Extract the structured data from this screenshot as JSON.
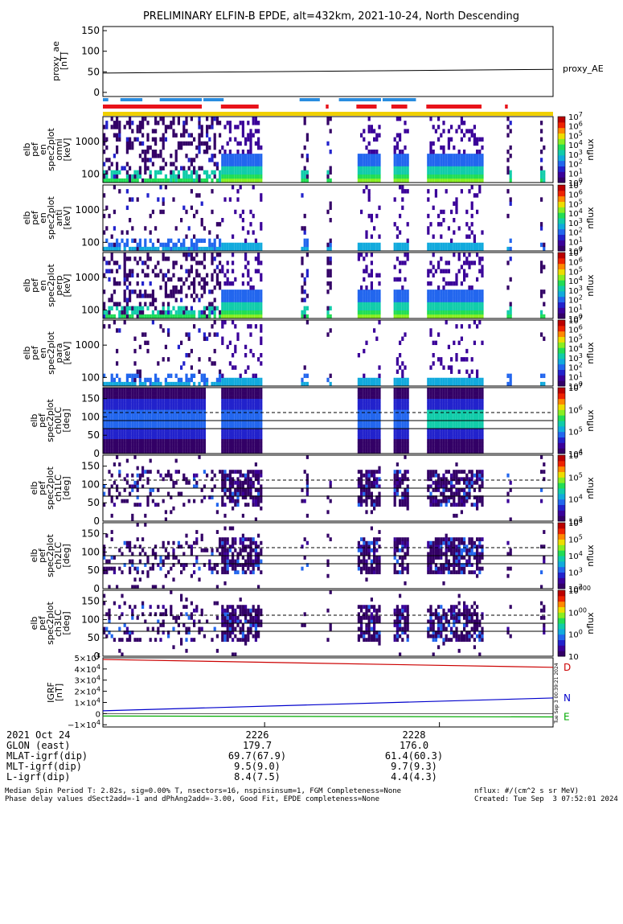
{
  "chart_data": {
    "type": "multi-panel-spectrogram",
    "title": "PRELIMINARY ELFIN-B EPDE, alt=432km, 2021-10-24, North Descending",
    "time_ticks": [
      "2226",
      "2228"
    ],
    "tick_minutes": [
      2226,
      2228
    ],
    "time_range_minutes": [
      2224.15,
      2229.3
    ],
    "flags": {
      "blue_segments": [
        [
          2224.15,
          2224.23
        ],
        [
          2224.35,
          2224.62
        ],
        [
          2224.8,
          2225.3
        ],
        [
          2225.3,
          2225.55
        ],
        [
          2226.4,
          2226.65
        ],
        [
          2226.85,
          2227.35
        ],
        [
          2227.35,
          2227.75
        ]
      ],
      "red_segments": [
        [
          2224.15,
          2225.3
        ],
        [
          2225.5,
          2225.95
        ],
        [
          2226.7,
          2226.75
        ],
        [
          2227.05,
          2227.3
        ],
        [
          2227.45,
          2227.65
        ],
        [
          2227.85,
          2228.5
        ],
        [
          2228.75,
          2228.8
        ]
      ]
    },
    "ae_panel": {
      "ylabel": "proxy_ae\n[nT]",
      "yticks": [
        "150",
        "100",
        "50",
        "0"
      ],
      "ylim": [
        -10,
        160
      ],
      "series_label": "proxy_AE",
      "values": [
        [
          2224.15,
          47
        ],
        [
          2229.3,
          56
        ]
      ]
    },
    "energy_panels": [
      {
        "ylabel": "elb\npef\nen\nspec2plot\nomni\n[keV]",
        "yticks": [
          "1000",
          "100"
        ],
        "cbar_ticks": [
          "107",
          "106",
          "105",
          "104",
          "103",
          "102",
          "101",
          "100"
        ],
        "cbar_label": "nflux",
        "dense": true
      },
      {
        "ylabel": "elb\npef\nen\nspec2plot\nanti\n[keV]",
        "yticks": [
          "1000",
          "100"
        ],
        "cbar_ticks": [
          "107",
          "106",
          "105",
          "104",
          "103",
          "102",
          "101",
          "100"
        ],
        "cbar_label": "nflux",
        "dense": false
      },
      {
        "ylabel": "elb\npef\nen\nspec2plot\nperp\n[keV]",
        "yticks": [
          "1000",
          "100"
        ],
        "cbar_ticks": [
          "107",
          "106",
          "105",
          "104",
          "103",
          "102",
          "101",
          "100"
        ],
        "cbar_label": "nflux",
        "dense": true
      },
      {
        "ylabel": "elb\npef\nen\nspec2plot\npara\n[keV]",
        "yticks": [
          "1000",
          "100"
        ],
        "cbar_ticks": [
          "107",
          "106",
          "105",
          "104",
          "103",
          "102",
          "101",
          "100"
        ],
        "cbar_label": "nflux",
        "dense": false
      }
    ],
    "pitch_panels": [
      {
        "ylabel": "elb\npef\nspec2plot\nch0LC\n[deg]",
        "yticks": [
          "150",
          "100",
          "50",
          "0"
        ],
        "cbar_ticks": [
          "107",
          "106",
          "105",
          "104"
        ],
        "cbar_label": "nflux"
      },
      {
        "ylabel": "elb\npef\nspec2plot\nch1LC\n[deg]",
        "yticks": [
          "150",
          "100",
          "50",
          "0"
        ],
        "cbar_ticks": [
          "106",
          "105",
          "104",
          "103"
        ],
        "cbar_label": "nflux"
      },
      {
        "ylabel": "elb\npef\nspec2plot\nch2LC\n[deg]",
        "yticks": [
          "150",
          "100",
          "50",
          "0"
        ],
        "cbar_ticks": [
          "106",
          "105",
          "104",
          "103",
          "102"
        ],
        "cbar_label": "nflux"
      },
      {
        "ylabel": "elb\npef\nspec2plot\nch3LC\n[deg]",
        "yticks": [
          "150",
          "100",
          "50",
          "0"
        ],
        "cbar_ticks": [
          "10000",
          "1000",
          "100",
          "10"
        ],
        "cbar_label": "nflux"
      }
    ],
    "igrf_panel": {
      "ylabel": "IGRF\n[nT]",
      "yticks": [
        "5×104",
        "4×104",
        "3×104",
        "2×104",
        "1×104",
        "0",
        "−1×104"
      ],
      "ylim": [
        -12000,
        50000
      ],
      "series": [
        {
          "name": "D",
          "color": "#cc0000",
          "values": [
            [
              2224.15,
              48500
            ],
            [
              2229.3,
              41500
            ]
          ]
        },
        {
          "name": "N",
          "color": "#0000cc",
          "values": [
            [
              2224.15,
              2500
            ],
            [
              2229.3,
              14000
            ]
          ]
        },
        {
          "name": "E",
          "color": "#00aa00",
          "values": [
            [
              2224.15,
              -2200
            ],
            [
              2229.3,
              -3000
            ]
          ]
        }
      ],
      "side_label": "Tue Sep 3 00:39:21 2024"
    }
  },
  "ephemeris": {
    "rows": [
      {
        "label": "2021 Oct 24",
        "v1": "2226",
        "v2": "2228"
      },
      {
        "label": "GLON (east)",
        "v1": "179.7",
        "v2": "176.0"
      },
      {
        "label": "MLAT-igrf(dip)",
        "v1": "69.7(67.9)",
        "v2": "61.4(60.3)"
      },
      {
        "label": "MLT-igrf(dip)",
        "v1": "9.5(9.0)",
        "v2": "9.7(9.3)"
      },
      {
        "label": "L-igrf(dip)",
        "v1": "8.4(7.5)",
        "v2": "4.4(4.3)"
      }
    ]
  },
  "footer": {
    "line1": "Median Spin Period T: 2.82s, sig=0.00% T, nsectors=16, nspinsinsum=1, FGM Completeness=None",
    "line2": "Phase delay values dSect2add=-1 and dPhAng2add=-3.00, Good Fit, EPDE completeness=None",
    "units": "nflux: #/(cm^2 s sr MeV)",
    "created": "Created: Tue Sep  3 07:52:01 2024"
  }
}
